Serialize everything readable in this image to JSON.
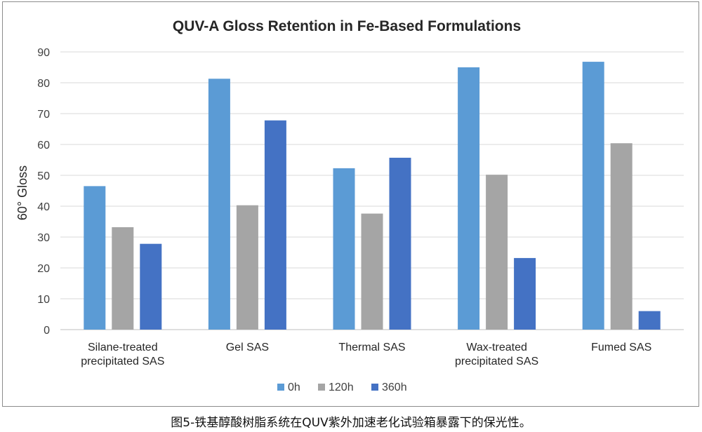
{
  "caption": "图5-铁基醇酸树脂系统在QUV紫外加速老化试验箱暴露下的保光性。",
  "chart_data": {
    "type": "bar",
    "title": "QUV-A Gloss Retention in Fe-Based Formulations",
    "xlabel": "",
    "ylabel": "60° Gloss",
    "ylim": [
      0,
      90
    ],
    "yticks": [
      0,
      10,
      20,
      30,
      40,
      50,
      60,
      70,
      80,
      90
    ],
    "grid": true,
    "legend_position": "bottom",
    "categories": [
      [
        "Silane-treated",
        "precipitated SAS"
      ],
      [
        "Gel SAS"
      ],
      [
        "Thermal SAS"
      ],
      [
        "Wax-treated",
        "precipitated SAS"
      ],
      [
        "Fumed SAS"
      ]
    ],
    "series": [
      {
        "name": "0h",
        "color": "#5b9bd5",
        "values": [
          46.5,
          81.3,
          52.3,
          85.0,
          86.8
        ]
      },
      {
        "name": "120h",
        "color": "#a5a5a5",
        "values": [
          33.2,
          40.3,
          37.6,
          50.2,
          60.4
        ]
      },
      {
        "name": "360h",
        "color": "#4472c4",
        "values": [
          27.8,
          67.8,
          55.7,
          23.2,
          6.0
        ]
      }
    ]
  }
}
